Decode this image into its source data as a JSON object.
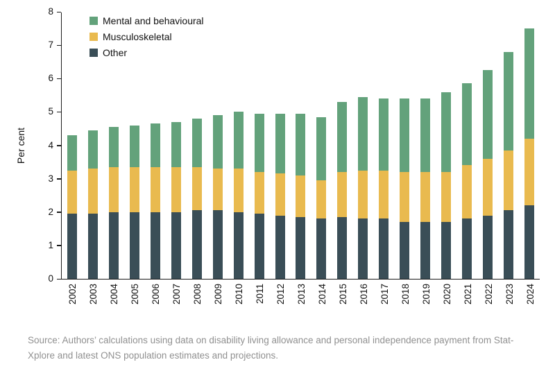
{
  "chart_data": {
    "type": "bar",
    "stacked": true,
    "title": "",
    "xlabel": "",
    "ylabel": "Per cent",
    "ylim": [
      0,
      8
    ],
    "yticks": [
      0,
      1,
      2,
      3,
      4,
      5,
      6,
      7,
      8
    ],
    "grid": false,
    "legend_position": "top-left-inside",
    "legend_order": [
      "Mental and behavioural",
      "Musculoskeletal",
      "Other"
    ],
    "categories": [
      "2002",
      "2003",
      "2004",
      "2005",
      "2006",
      "2007",
      "2008",
      "2009",
      "2010",
      "2011",
      "2012",
      "2013",
      "2014",
      "2015",
      "2016",
      "2017",
      "2018",
      "2019",
      "2020",
      "2021",
      "2022",
      "2023",
      "2024"
    ],
    "series": [
      {
        "name": "Other",
        "color": "#3A4E57",
        "values": [
          1.95,
          1.95,
          2.0,
          2.0,
          2.0,
          2.0,
          2.05,
          2.05,
          2.0,
          1.95,
          1.9,
          1.85,
          1.8,
          1.85,
          1.8,
          1.8,
          1.7,
          1.7,
          1.7,
          1.8,
          1.9,
          2.05,
          2.2
        ]
      },
      {
        "name": "Musculoskeletal",
        "color": "#E9BA4F",
        "values": [
          1.3,
          1.35,
          1.35,
          1.35,
          1.35,
          1.35,
          1.3,
          1.25,
          1.3,
          1.25,
          1.25,
          1.25,
          1.15,
          1.35,
          1.45,
          1.45,
          1.5,
          1.5,
          1.5,
          1.6,
          1.7,
          1.8,
          2.0
        ]
      },
      {
        "name": "Mental and behavioural",
        "color": "#63A27B",
        "values": [
          1.05,
          1.15,
          1.2,
          1.25,
          1.3,
          1.35,
          1.45,
          1.6,
          1.7,
          1.75,
          1.8,
          1.85,
          1.9,
          2.1,
          2.2,
          2.15,
          2.2,
          2.2,
          2.4,
          2.45,
          2.65,
          2.95,
          3.3
        ]
      }
    ]
  },
  "source": {
    "text": "Source: Authors’ calculations using data on disability living allowance and personal independence payment from Stat-Xplore and latest ONS population estimates and projections."
  }
}
